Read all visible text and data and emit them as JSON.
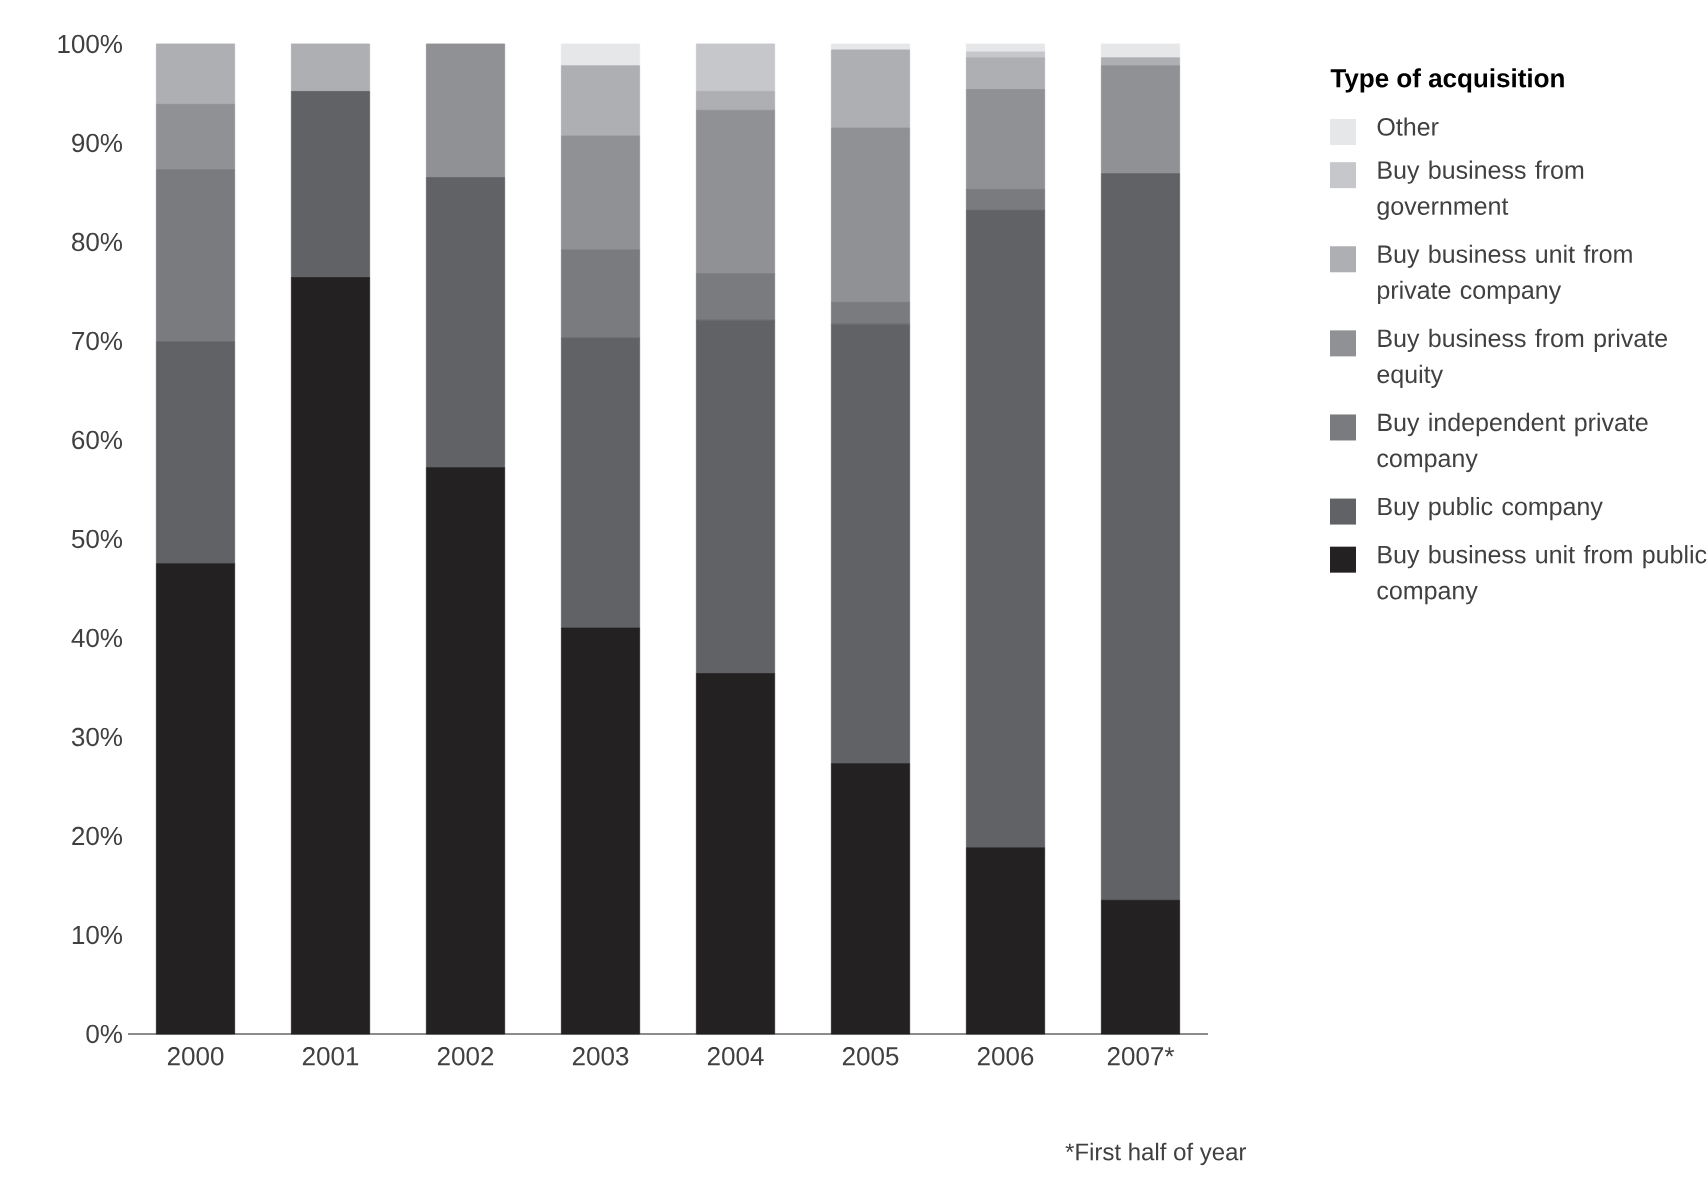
{
  "chart_data": {
    "type": "bar",
    "stacked": true,
    "legend": "right",
    "legend_title": "Type of acquisition",
    "categories": [
      "2000",
      "2001",
      "2002",
      "2003",
      "2004",
      "2005",
      "2006",
      "2007*"
    ],
    "ylim": [
      0,
      100
    ],
    "yticks": [
      {
        "value": 0,
        "label": "0%"
      },
      {
        "value": 10,
        "label": "10%"
      },
      {
        "value": 20,
        "label": "20%"
      },
      {
        "value": 30,
        "label": "30%"
      },
      {
        "value": 40,
        "label": "40%"
      },
      {
        "value": 50,
        "label": "50%"
      },
      {
        "value": 60,
        "label": "60%"
      },
      {
        "value": 70,
        "label": "70%"
      },
      {
        "value": 80,
        "label": "80%"
      },
      {
        "value": 90,
        "label": "90%"
      },
      {
        "value": 100,
        "label": "100%"
      }
    ],
    "series": [
      {
        "name": "Buy business unit from public company",
        "color": "#242122",
        "values": [
          47.5,
          76.4,
          57.2,
          41.0,
          36.4,
          27.3,
          18.8,
          13.5
        ]
      },
      {
        "name": "Buy public company",
        "color": "#616266",
        "values": [
          22.4,
          18.8,
          29.3,
          29.3,
          35.7,
          44.4,
          64.4,
          73.4
        ]
      },
      {
        "name": "Buy independent private company",
        "color": "#7a7b7f",
        "values": [
          17.4,
          0,
          0,
          8.9,
          4.7,
          2.2,
          2.1,
          0
        ]
      },
      {
        "name": "Buy business from private equity",
        "color": "#909195",
        "values": [
          6.6,
          0,
          13.5,
          11.5,
          16.5,
          17.6,
          10.1,
          10.9
        ]
      },
      {
        "name": "Buy business unit from private company",
        "color": "#aeafb3",
        "values": [
          6.1,
          4.8,
          0,
          7.1,
          1.9,
          7.9,
          3.2,
          0.8
        ]
      },
      {
        "name": "Buy business from government",
        "color": "#c6c7cb",
        "values": [
          0,
          0,
          0,
          0,
          4.8,
          0,
          0.6,
          0
        ]
      },
      {
        "name": "Other",
        "color": "#e6e7e9",
        "values": [
          0,
          0,
          0,
          2.2,
          0,
          0.6,
          0.8,
          1.4
        ]
      }
    ],
    "annotations": [
      "*First half of year"
    ]
  }
}
